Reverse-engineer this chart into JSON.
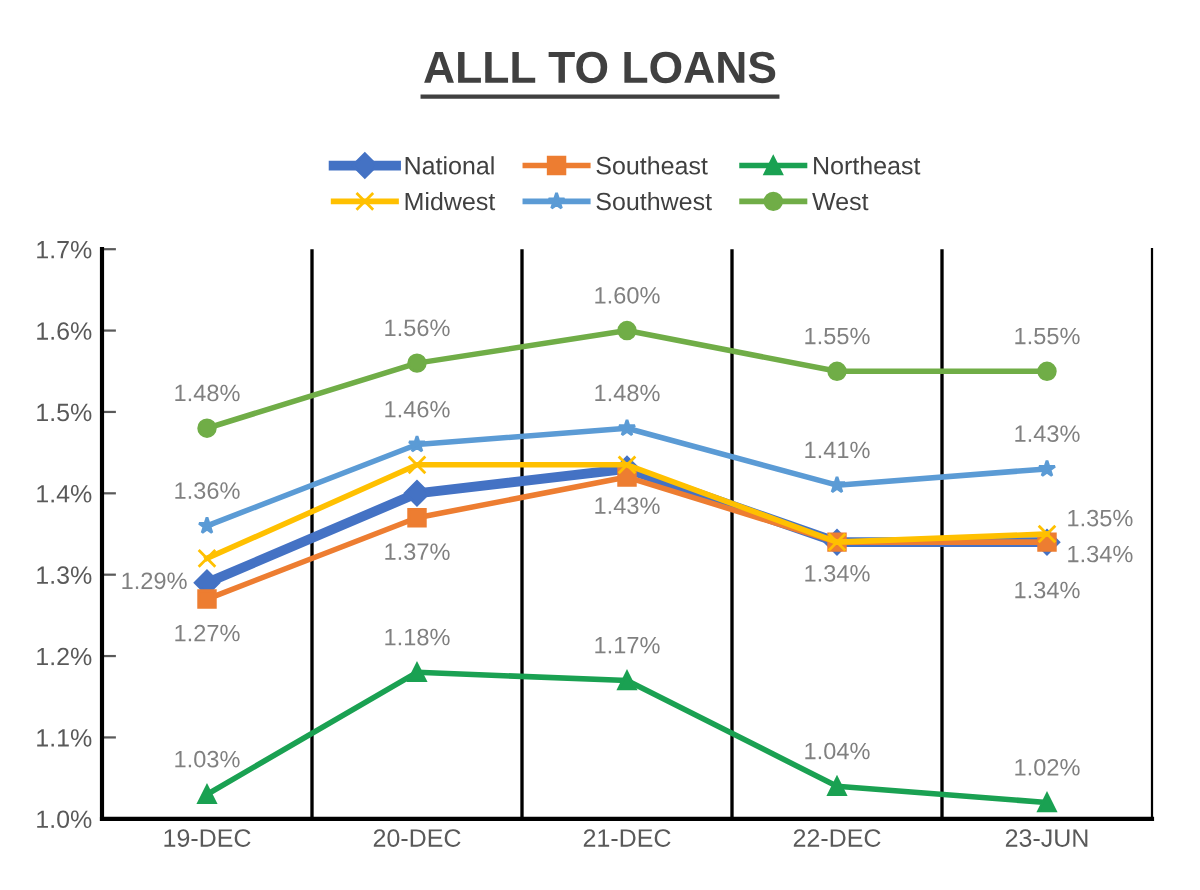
{
  "chart_data": {
    "type": "line",
    "title": "ALLL TO LOANS",
    "categories": [
      "19-DEC",
      "20-DEC",
      "21-DEC",
      "22-DEC",
      "23-JUN"
    ],
    "ylim": [
      1.0,
      1.7
    ],
    "yticks": [
      {
        "value": 1.0,
        "label": "1.0%"
      },
      {
        "value": 1.1,
        "label": "1.1%"
      },
      {
        "value": 1.2,
        "label": "1.2%"
      },
      {
        "value": 1.3,
        "label": "1.3%"
      },
      {
        "value": 1.4,
        "label": "1.4%"
      },
      {
        "value": 1.5,
        "label": "1.5%"
      },
      {
        "value": 1.6,
        "label": "1.6%"
      },
      {
        "value": 1.7,
        "label": "1.7%"
      }
    ],
    "grid": "x",
    "legend": "top",
    "line_style": "solid",
    "series": [
      {
        "name": "National",
        "color": "#4472c4",
        "marker": "diamond",
        "values": [
          1.29,
          1.4,
          1.43,
          1.34,
          1.34
        ],
        "value_labels": [
          "1.29%",
          null,
          "1.43%",
          "1.34%",
          "1.34%"
        ]
      },
      {
        "name": "Southeast",
        "color": "#ed7d31",
        "marker": "square",
        "values": [
          1.27,
          1.37,
          1.42,
          1.34,
          1.34
        ],
        "value_labels": [
          "1.27%",
          "1.37%",
          null,
          null,
          "1.34%"
        ]
      },
      {
        "name": "Northeast",
        "color": "#1aa152",
        "marker": "triangle",
        "values": [
          1.03,
          1.18,
          1.17,
          1.04,
          1.02
        ],
        "value_labels": [
          "1.03%",
          "1.18%",
          "1.17%",
          "1.04%",
          "1.02%"
        ]
      },
      {
        "name": "Midwest",
        "color": "#ffc000",
        "marker": "cross",
        "values": [
          1.32,
          1.435,
          1.435,
          1.34,
          1.35
        ],
        "value_labels": [
          null,
          null,
          null,
          null,
          "1.35%"
        ]
      },
      {
        "name": "Southwest",
        "color": "#5b9bd5",
        "marker": "star",
        "values": [
          1.36,
          1.46,
          1.48,
          1.41,
          1.43
        ],
        "value_labels": [
          "1.36%",
          "1.46%",
          "1.48%",
          "1.41%",
          "1.43%"
        ]
      },
      {
        "name": "West",
        "color": "#70ad47",
        "marker": "circle",
        "values": [
          1.48,
          1.56,
          1.6,
          1.55,
          1.55
        ],
        "value_labels": [
          "1.48%",
          "1.56%",
          "1.60%",
          "1.55%",
          "1.55%"
        ]
      }
    ]
  }
}
